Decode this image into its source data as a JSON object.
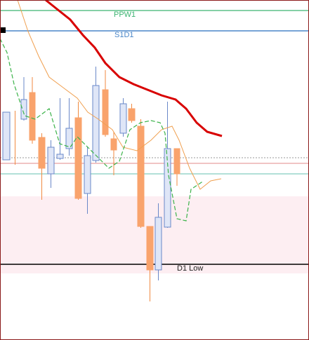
{
  "levels": [
    {
      "label": "PPW1"
    },
    {
      "label": "S1D1"
    },
    {
      "label": "D1 Low"
    }
  ]
}
